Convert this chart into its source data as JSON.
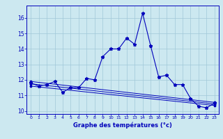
{
  "xlabel": "Graphe des températures (°c)",
  "background_color": "#cce8f0",
  "grid_color": "#a0c8d8",
  "line_color": "#0000bb",
  "xlim": [
    -0.5,
    23.5
  ],
  "ylim": [
    9.8,
    16.8
  ],
  "xticks": [
    0,
    1,
    2,
    3,
    4,
    5,
    6,
    7,
    8,
    9,
    10,
    11,
    12,
    13,
    14,
    15,
    16,
    17,
    18,
    19,
    20,
    21,
    22,
    23
  ],
  "yticks": [
    10,
    11,
    12,
    13,
    14,
    15,
    16
  ],
  "main_series": {
    "x": [
      0,
      1,
      2,
      3,
      4,
      5,
      6,
      7,
      8,
      9,
      10,
      11,
      12,
      13,
      14,
      15,
      16,
      17,
      18,
      19,
      20,
      21,
      22,
      23
    ],
    "y": [
      11.8,
      11.6,
      11.7,
      11.9,
      11.2,
      11.5,
      11.5,
      12.1,
      12.0,
      13.5,
      14.0,
      14.0,
      14.7,
      14.3,
      16.3,
      14.2,
      12.2,
      12.3,
      11.7,
      11.7,
      10.8,
      10.3,
      10.2,
      10.5
    ]
  },
  "flat_series": [
    {
      "x": [
        0,
        23
      ],
      "y": [
        11.9,
        10.55
      ]
    },
    {
      "x": [
        0,
        23
      ],
      "y": [
        11.75,
        10.45
      ]
    },
    {
      "x": [
        0,
        23
      ],
      "y": [
        11.6,
        10.35
      ]
    }
  ]
}
